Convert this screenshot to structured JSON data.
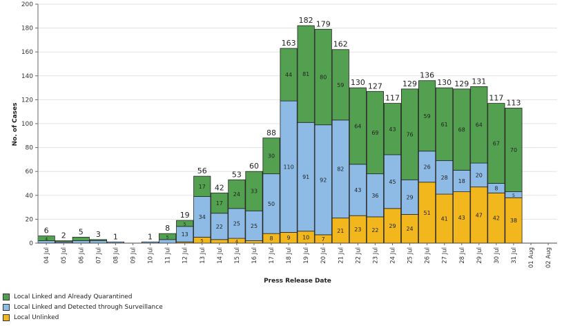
{
  "chart_data": {
    "type": "bar",
    "stacked": true,
    "title": "",
    "xlabel": "Press Release Date",
    "ylabel": "No. of Cases",
    "ylim": [
      0,
      200
    ],
    "yticks": [
      0,
      20,
      40,
      60,
      80,
      100,
      120,
      140,
      160,
      180,
      200
    ],
    "grid": true,
    "legend_position": "bottom-left",
    "categories": [
      "04 Jul",
      "05 Jul",
      "06 Jul",
      "07 Jul",
      "08 Jul",
      "09 Jul",
      "10 Jul",
      "11 Jul",
      "12 Jul",
      "13 Jul",
      "14 Jul",
      "15 Jul",
      "16 Jul",
      "17 Jul",
      "18 Jul",
      "19 Jul",
      "20 Jul",
      "21 Jul",
      "22 Jul",
      "23 Jul",
      "24 Jul",
      "25 Jul",
      "26 Jul",
      "27 Jul",
      "28 Jul",
      "29 Jul",
      "30 Jul",
      "31 Jul",
      "01 Aug",
      "02 Aug"
    ],
    "totals": [
      6,
      2,
      5,
      3,
      1,
      null,
      1,
      8,
      19,
      56,
      42,
      53,
      60,
      88,
      163,
      182,
      179,
      162,
      130,
      127,
      117,
      129,
      136,
      130,
      129,
      131,
      117,
      113,
      null,
      null
    ],
    "series": [
      {
        "name": "Local Unlinked",
        "color": "#f2b71c",
        "values": [
          0,
          0,
          0,
          0,
          0,
          0,
          0,
          0,
          1,
          5,
          3,
          4,
          2,
          8,
          9,
          10,
          7,
          21,
          23,
          22,
          29,
          24,
          51,
          41,
          43,
          47,
          42,
          38,
          0,
          0
        ]
      },
      {
        "name": "Local Linked and Detected through Surveillance",
        "color": "#8dbbe6",
        "values": [
          2,
          1,
          2,
          2,
          1,
          0,
          1,
          3,
          13,
          34,
          22,
          25,
          25,
          50,
          110,
          91,
          92,
          82,
          43,
          36,
          45,
          29,
          26,
          28,
          18,
          20,
          8,
          5,
          0,
          0
        ]
      },
      {
        "name": "Local Linked and Already Quarantined",
        "color": "#53a150",
        "values": [
          4,
          1,
          3,
          1,
          0,
          0,
          0,
          5,
          5,
          17,
          17,
          24,
          33,
          30,
          44,
          81,
          80,
          59,
          64,
          69,
          43,
          76,
          59,
          61,
          68,
          64,
          67,
          70,
          0,
          0
        ]
      }
    ]
  },
  "legend": {
    "items": [
      {
        "label": "Local Linked and Already Quarantined",
        "color": "#53a150"
      },
      {
        "label": "Local Linked and Detected through Surveillance",
        "color": "#8dbbe6"
      },
      {
        "label": "Local Unlinked",
        "color": "#f2b71c"
      }
    ]
  }
}
